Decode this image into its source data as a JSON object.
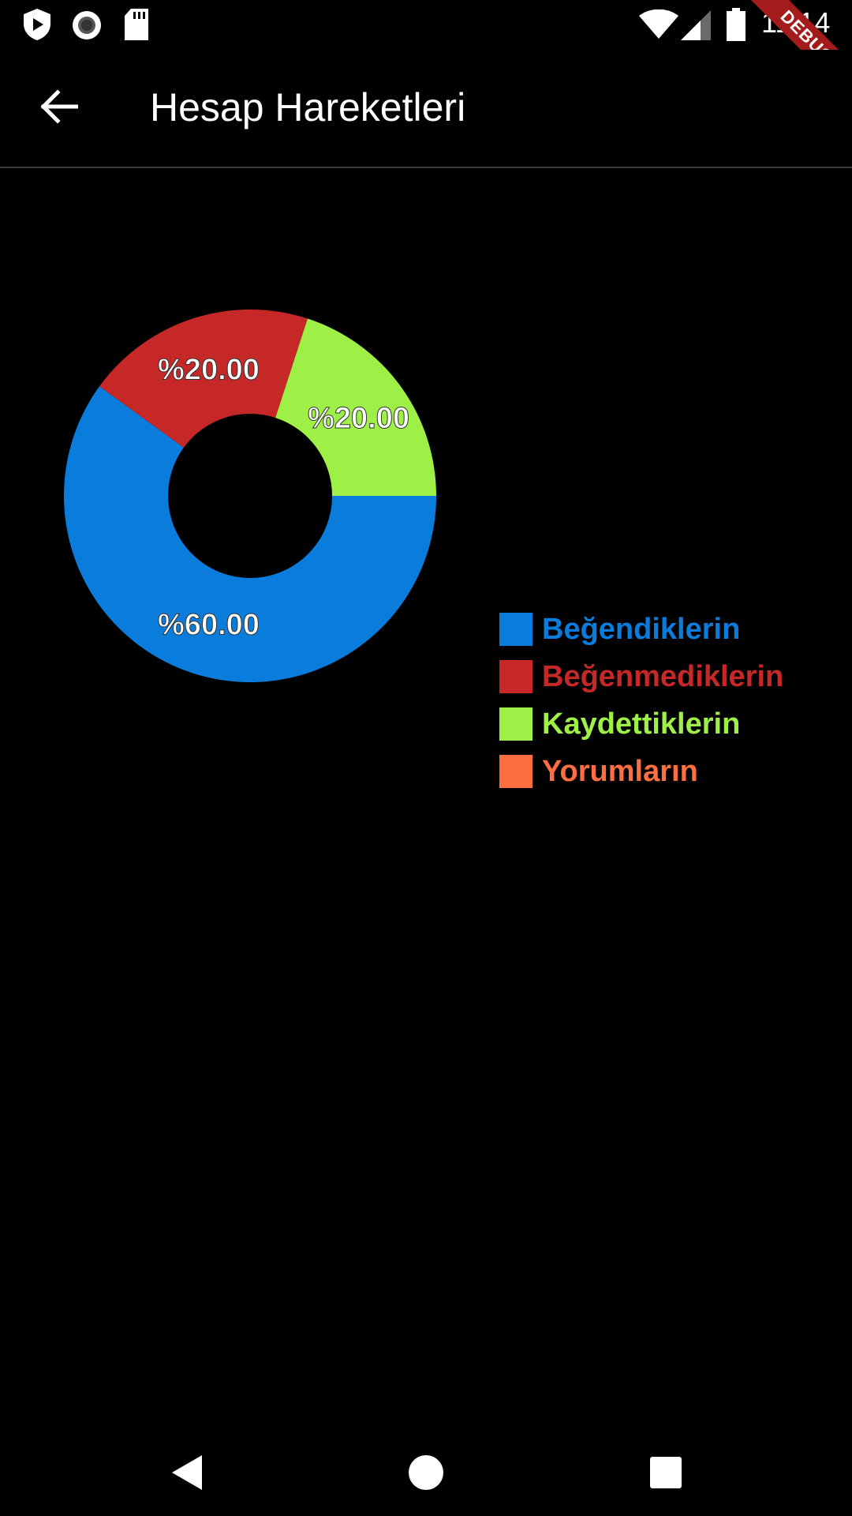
{
  "status_bar": {
    "time": "11:14",
    "left_icons": [
      "play-protect-icon",
      "record-icon",
      "sd-card-icon"
    ],
    "right_icons": [
      "wifi-icon",
      "signal-icon",
      "battery-icon"
    ]
  },
  "debug_banner": {
    "label": "DEBUG",
    "color": "#a31b1b"
  },
  "app_bar": {
    "title": "Hesap Hareketleri",
    "back_icon": "arrow-back-icon"
  },
  "chart_data": {
    "type": "pie",
    "donut": true,
    "categories": [
      "Beğendiklerin",
      "Beğenmediklerin",
      "Kaydettiklerin",
      "Yorumların"
    ],
    "values": [
      60,
      20,
      20,
      0
    ],
    "labels": [
      "%60.00",
      "%20.00",
      "%20.00",
      ""
    ],
    "colors": [
      "#0a7ddc",
      "#c62828",
      "#9ef046",
      "#ff6e40"
    ],
    "legend_position": "right"
  },
  "nav_bar": {
    "icons": [
      "back-triangle-icon",
      "home-circle-icon",
      "recents-square-icon"
    ]
  }
}
